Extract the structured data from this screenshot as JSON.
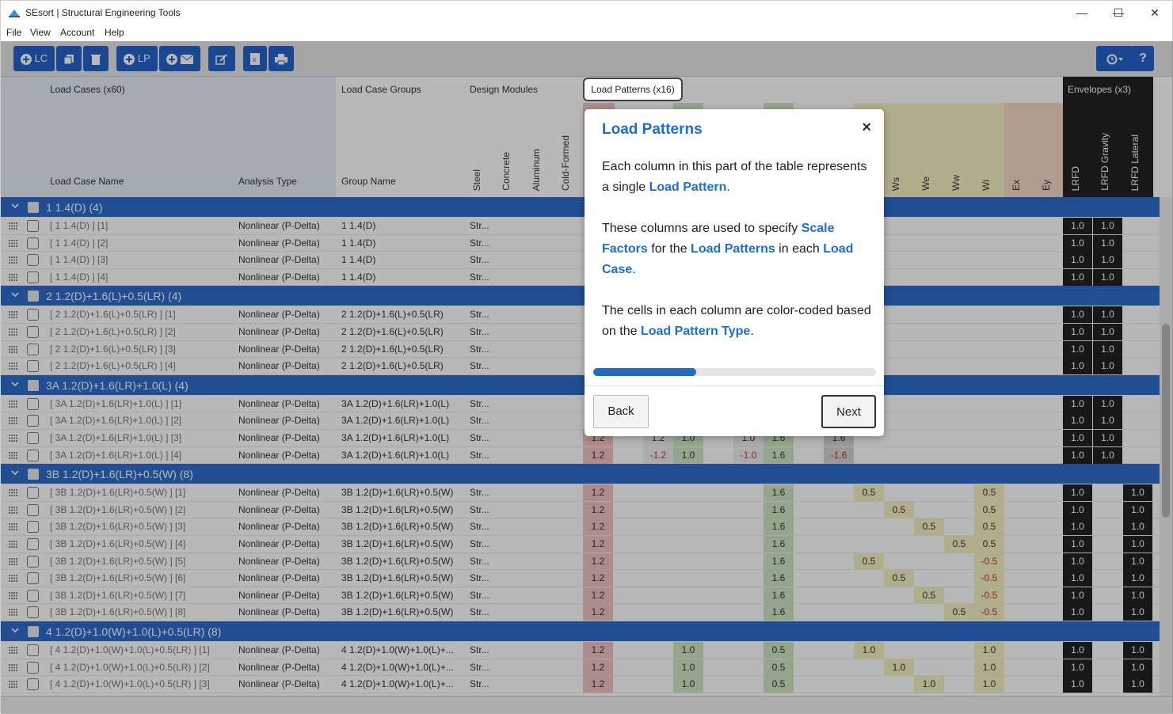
{
  "window": {
    "title": "SEsort | Structural Engineering Tools",
    "minimize": "—",
    "maximize": "☐",
    "close": "✕"
  },
  "menu": [
    "File",
    "View",
    "Account",
    "Help"
  ],
  "toolbar": {
    "lc_label": "LC",
    "lp_label": "LP",
    "icons": [
      "plus-circle",
      "copy",
      "trash",
      "plus-circle",
      "plus-envelope",
      "edit",
      "excel",
      "print",
      "history",
      "help"
    ]
  },
  "headers": {
    "load_cases": "Load Cases (x60)",
    "load_case_groups": "Load Case Groups",
    "design_modules": "Design Modules",
    "load_patterns": "Load Patterns (x16)",
    "envelopes": "Envelopes (x3)",
    "load_case_name": "Load Case Name",
    "analysis_type": "Analysis Type",
    "group_name": "Group Name",
    "modules": [
      "Steel",
      "Concrete",
      "Aluminum",
      "Cold-Formed"
    ],
    "patterns_visible": [
      "Ws",
      "We",
      "Ww",
      "Wi",
      "Ex",
      "Ey"
    ],
    "envelope_cols": [
      "LRFD",
      "LRFD Gravity",
      "LRFD Lateral"
    ]
  },
  "groups": [
    {
      "label": "1 1.4(D) (4)",
      "rows": [
        {
          "name": "[ 1 1.4(D) ] [1]",
          "type": "Nonlinear (P-Delta)",
          "group": "1 1.4(D)",
          "mod": "Str...",
          "env": [
            "1.0",
            "1.0",
            ""
          ]
        },
        {
          "name": "[ 1 1.4(D) ] [2]",
          "type": "Nonlinear (P-Delta)",
          "group": "1 1.4(D)",
          "mod": "Str...",
          "env": [
            "1.0",
            "1.0",
            ""
          ]
        },
        {
          "name": "[ 1 1.4(D) ] [3]",
          "type": "Nonlinear (P-Delta)",
          "group": "1 1.4(D)",
          "mod": "Str...",
          "env": [
            "1.0",
            "1.0",
            ""
          ]
        },
        {
          "name": "[ 1 1.4(D) ] [4]",
          "type": "Nonlinear (P-Delta)",
          "group": "1 1.4(D)",
          "mod": "Str...",
          "env": [
            "1.0",
            "1.0",
            ""
          ]
        }
      ]
    },
    {
      "label": "2 1.2(D)+1.6(L)+0.5(LR) (4)",
      "rows": [
        {
          "name": "[ 2 1.2(D)+1.6(L)+0.5(LR) ] [1]",
          "type": "Nonlinear (P-Delta)",
          "group": "2 1.2(D)+1.6(L)+0.5(LR)",
          "mod": "Str...",
          "env": [
            "1.0",
            "1.0",
            ""
          ]
        },
        {
          "name": "[ 2 1.2(D)+1.6(L)+0.5(LR) ] [2]",
          "type": "Nonlinear (P-Delta)",
          "group": "2 1.2(D)+1.6(L)+0.5(LR)",
          "mod": "Str...",
          "env": [
            "1.0",
            "1.0",
            ""
          ]
        },
        {
          "name": "[ 2 1.2(D)+1.6(L)+0.5(LR) ] [3]",
          "type": "Nonlinear (P-Delta)",
          "group": "2 1.2(D)+1.6(L)+0.5(LR)",
          "mod": "Str...",
          "env": [
            "1.0",
            "1.0",
            ""
          ]
        },
        {
          "name": "[ 2 1.2(D)+1.6(L)+0.5(LR) ] [4]",
          "type": "Nonlinear (P-Delta)",
          "group": "2 1.2(D)+1.6(L)+0.5(LR)",
          "mod": "Str...",
          "env": [
            "1.0",
            "1.0",
            ""
          ]
        }
      ]
    },
    {
      "label": "3A 1.2(D)+1.6(LR)+1.0(L) (4)",
      "rows": [
        {
          "name": "[ 3A 1.2(D)+1.6(LR)+1.0(L) ] [1]",
          "type": "Nonlinear (P-Delta)",
          "group": "3A 1.2(D)+1.6(LR)+1.0(L)",
          "mod": "Str...",
          "env": [
            "1.0",
            "1.0",
            ""
          ]
        },
        {
          "name": "[ 3A 1.2(D)+1.6(LR)+1.0(L) ] [2]",
          "type": "Nonlinear (P-Delta)",
          "group": "3A 1.2(D)+1.6(LR)+1.0(L)",
          "mod": "Str...",
          "env": [
            "1.0",
            "1.0",
            ""
          ]
        },
        {
          "name": "[ 3A 1.2(D)+1.6(LR)+1.0(L) ] [3]",
          "type": "Nonlinear (P-Delta)",
          "group": "3A 1.2(D)+1.6(LR)+1.0(L)",
          "mod": "Str...",
          "lp": {
            "p1": "1.2",
            "p3": "1.2",
            "p4": "1.0",
            "p6": "1.0",
            "p7": "1.6",
            "p9": "1.6"
          },
          "env": [
            "1.0",
            "1.0",
            ""
          ]
        },
        {
          "name": "[ 3A 1.2(D)+1.6(LR)+1.0(L) ] [4]",
          "type": "Nonlinear (P-Delta)",
          "group": "3A 1.2(D)+1.6(LR)+1.0(L)",
          "mod": "Str...",
          "lp": {
            "p1": "1.2",
            "p3": "-1.2",
            "p4": "1.0",
            "p6": "-1.0",
            "p7": "1.6",
            "p9": "-1.6"
          },
          "env": [
            "1.0",
            "1.0",
            ""
          ]
        }
      ]
    },
    {
      "label": "3B 1.2(D)+1.6(LR)+0.5(W) (8)",
      "rows": [
        {
          "name": "[ 3B 1.2(D)+1.6(LR)+0.5(W) ] [1]",
          "type": "Nonlinear (P-Delta)",
          "group": "3B 1.2(D)+1.6(LR)+0.5(W)",
          "mod": "Str...",
          "lp": {
            "p1": "1.2",
            "p7": "1.6",
            "p10": "0.5",
            "p14": "0.5"
          },
          "env": [
            "1.0",
            "",
            "1.0"
          ]
        },
        {
          "name": "[ 3B 1.2(D)+1.6(LR)+0.5(W) ] [2]",
          "type": "Nonlinear (P-Delta)",
          "group": "3B 1.2(D)+1.6(LR)+0.5(W)",
          "mod": "Str...",
          "lp": {
            "p1": "1.2",
            "p7": "1.6",
            "p11": "0.5",
            "p14": "0.5"
          },
          "env": [
            "1.0",
            "",
            "1.0"
          ]
        },
        {
          "name": "[ 3B 1.2(D)+1.6(LR)+0.5(W) ] [3]",
          "type": "Nonlinear (P-Delta)",
          "group": "3B 1.2(D)+1.6(LR)+0.5(W)",
          "mod": "Str...",
          "lp": {
            "p1": "1.2",
            "p7": "1.6",
            "p12": "0.5",
            "p14": "0.5"
          },
          "env": [
            "1.0",
            "",
            "1.0"
          ]
        },
        {
          "name": "[ 3B 1.2(D)+1.6(LR)+0.5(W) ] [4]",
          "type": "Nonlinear (P-Delta)",
          "group": "3B 1.2(D)+1.6(LR)+0.5(W)",
          "mod": "Str...",
          "lp": {
            "p1": "1.2",
            "p7": "1.6",
            "p13": "0.5",
            "p14": "0.5"
          },
          "env": [
            "1.0",
            "",
            "1.0"
          ]
        },
        {
          "name": "[ 3B 1.2(D)+1.6(LR)+0.5(W) ] [5]",
          "type": "Nonlinear (P-Delta)",
          "group": "3B 1.2(D)+1.6(LR)+0.5(W)",
          "mod": "Str...",
          "lp": {
            "p1": "1.2",
            "p7": "1.6",
            "p10": "0.5",
            "p14": "-0.5"
          },
          "env": [
            "1.0",
            "",
            "1.0"
          ]
        },
        {
          "name": "[ 3B 1.2(D)+1.6(LR)+0.5(W) ] [6]",
          "type": "Nonlinear (P-Delta)",
          "group": "3B 1.2(D)+1.6(LR)+0.5(W)",
          "mod": "Str...",
          "lp": {
            "p1": "1.2",
            "p7": "1.6",
            "p11": "0.5",
            "p14": "-0.5"
          },
          "env": [
            "1.0",
            "",
            "1.0"
          ]
        },
        {
          "name": "[ 3B 1.2(D)+1.6(LR)+0.5(W) ] [7]",
          "type": "Nonlinear (P-Delta)",
          "group": "3B 1.2(D)+1.6(LR)+0.5(W)",
          "mod": "Str...",
          "lp": {
            "p1": "1.2",
            "p7": "1.6",
            "p12": "0.5",
            "p14": "-0.5"
          },
          "env": [
            "1.0",
            "",
            "1.0"
          ]
        },
        {
          "name": "[ 3B 1.2(D)+1.6(LR)+0.5(W) ] [8]",
          "type": "Nonlinear (P-Delta)",
          "group": "3B 1.2(D)+1.6(LR)+0.5(W)",
          "mod": "Str...",
          "lp": {
            "p1": "1.2",
            "p7": "1.6",
            "p13": "0.5",
            "p14": "-0.5"
          },
          "env": [
            "1.0",
            "",
            "1.0"
          ]
        }
      ]
    },
    {
      "label": "4 1.2(D)+1.0(W)+1.0(L)+0.5(LR) (8)",
      "rows": [
        {
          "name": "[ 4 1.2(D)+1.0(W)+1.0(L)+0.5(LR) ] [1]",
          "type": "Nonlinear (P-Delta)",
          "group": "4 1.2(D)+1.0(W)+1.0(L)+...",
          "mod": "Str...",
          "lp": {
            "p1": "1.2",
            "p4": "1.0",
            "p7": "0.5",
            "p10": "1.0",
            "p14": "1.0"
          },
          "env": [
            "1.0",
            "",
            "1.0"
          ]
        },
        {
          "name": "[ 4 1.2(D)+1.0(W)+1.0(L)+0.5(LR) ] [2]",
          "type": "Nonlinear (P-Delta)",
          "group": "4 1.2(D)+1.0(W)+1.0(L)+...",
          "mod": "Str...",
          "lp": {
            "p1": "1.2",
            "p4": "1.0",
            "p7": "0.5",
            "p11": "1.0",
            "p14": "1.0"
          },
          "env": [
            "1.0",
            "",
            "1.0"
          ]
        },
        {
          "name": "[ 4 1.2(D)+1.0(W)+1.0(L)+0.5(LR) ] [3]",
          "type": "Nonlinear (P-Delta)",
          "group": "4 1.2(D)+1.0(W)+1.0(L)+...",
          "mod": "Str...",
          "lp": {
            "p1": "1.2",
            "p4": "1.0",
            "p7": "0.5",
            "p12": "1.0",
            "p14": "1.0"
          },
          "env": [
            "1.0",
            "",
            "1.0"
          ]
        }
      ]
    }
  ],
  "popover": {
    "title": "Load Patterns",
    "close": "×",
    "p1_a": "Each column in this part of the table represents a single ",
    "p1_hl": "Load Pattern",
    "p1_b": ".",
    "p2_a": "These columns are used to specify ",
    "p2_hl1": "Scale Factors",
    "p2_b": " for the ",
    "p2_hl2": "Load Patterns",
    "p2_c": " in each ",
    "p2_hl3": "Load Case",
    "p2_d": ".",
    "p3_a": "The cells in each column are color-coded based on the ",
    "p3_hl": "Load Pattern Type",
    "p3_b": ".",
    "progress": 0.365,
    "back": "Back",
    "next": "Next"
  },
  "colors": {
    "accent": "#2f6bcb",
    "toolbar_btn": "#2563c9",
    "highlight": "#1a6fd6",
    "dead": "#f3c2c2",
    "live": "#cfe6c4",
    "wind": "#f6f2c2",
    "seismic": "#f4d8c2",
    "envelope": "#222222"
  }
}
